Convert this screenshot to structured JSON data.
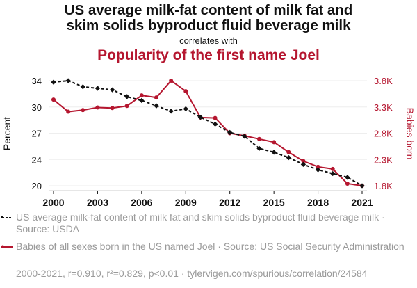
{
  "header": {
    "title": "US average milk-fat content of milk fat and skim solids byproduct fluid beverage milk",
    "title_line1": "US average milk-fat content of milk fat and",
    "title_line2": "skim solids byproduct fluid beverage milk",
    "connector": "correlates with",
    "subtitle": "Popularity of the first name Joel"
  },
  "colors": {
    "series1": "#111111",
    "series2": "#b5162f",
    "grid": "#eeeeee",
    "muted_text": "#9a9a9a"
  },
  "chart_data": {
    "type": "line",
    "title": "US average milk-fat content of milk fat and skim solids byproduct fluid beverage milk correlates with Popularity of the first name Joel",
    "x": [
      2000,
      2001,
      2002,
      2003,
      2004,
      2005,
      2006,
      2007,
      2008,
      2009,
      2010,
      2011,
      2012,
      2013,
      2014,
      2015,
      2016,
      2017,
      2018,
      2019,
      2020,
      2021
    ],
    "xticks": [
      "2000",
      "2003",
      "2006",
      "2009",
      "2012",
      "2015",
      "2018",
      "2021"
    ],
    "xlim": [
      2000,
      2021
    ],
    "grid": true,
    "legend_placement": "bottom",
    "left_axis": {
      "label": "Percent",
      "ticks": [
        "34",
        "30",
        "27",
        "24",
        "20"
      ],
      "ylim": [
        20.1,
        33.9
      ]
    },
    "right_axis": {
      "label": "Babies born",
      "ticks": [
        "3.8K",
        "3.3K",
        "2.8K",
        "2.3K",
        "1.8K"
      ],
      "ylim": [
        1800,
        3800
      ]
    },
    "series": [
      {
        "name": "US average milk-fat content of milk fat and skim solids byproduct fluid beverage milk · Source: USDA",
        "axis": "left",
        "style": "dashed-diamond",
        "values": [
          33.7,
          33.9,
          33.1,
          32.9,
          32.7,
          31.8,
          31.3,
          30.6,
          29.9,
          30.2,
          29.1,
          28.2,
          27.1,
          26.6,
          25.0,
          24.5,
          23.8,
          22.9,
          22.2,
          21.7,
          21.2,
          20.1
        ]
      },
      {
        "name": "Babies of all sexes born in the US named Joel · Source: US Social Security Administration",
        "axis": "right",
        "style": "solid-circle",
        "values": [
          3440,
          3210,
          3240,
          3290,
          3280,
          3320,
          3520,
          3480,
          3800,
          3600,
          3100,
          3090,
          2800,
          2750,
          2690,
          2630,
          2440,
          2270,
          2160,
          2120,
          1840,
          1800
        ]
      }
    ],
    "annotation": "2000-2021, r=0.910, r²=0.829, p<0.01 · tylervigen.com/spurious/correlation/24584"
  },
  "legend": {
    "series1_label": "US average milk-fat content of milk fat and skim solids byproduct fluid beverage milk · Source: USDA",
    "series2_label": "Babies of all sexes born in the US named Joel · Source: US Social Security Administration"
  },
  "footer": {
    "stats": "2000-2021, r=0.910, r²=0.829, p<0.01 · tylervigen.com/spurious/correlation/24584"
  }
}
